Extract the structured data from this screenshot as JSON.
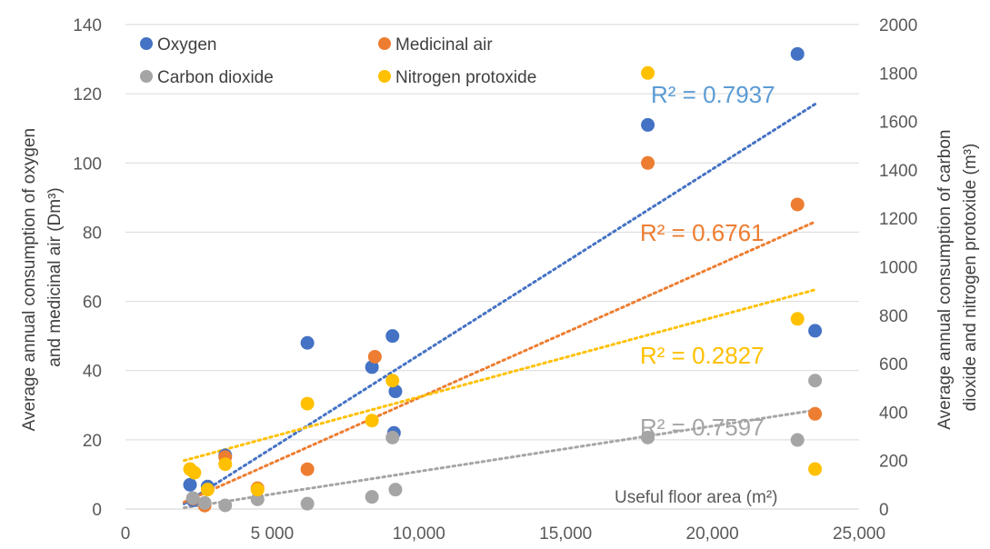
{
  "chart_data": {
    "type": "scatter",
    "title": "",
    "xlabel": "Useful floor area (m²)",
    "ylabel_left": [
      "Average annual consumption of oxygen",
      "and medicinal air (Dm³)"
    ],
    "ylabel_right": [
      "Average annual consumption of carbon",
      "dioxide and nitrogen protoxide (m³)"
    ],
    "xlim": [
      0,
      25000
    ],
    "ylim_left": [
      0,
      140
    ],
    "ylim_right": [
      0,
      2000
    ],
    "x_ticks": [
      "0",
      "5 000",
      "10,000",
      "15,000",
      "20,000",
      "25,000"
    ],
    "y_left_ticks": [
      "0",
      "20",
      "40",
      "60",
      "80",
      "100",
      "120",
      "140"
    ],
    "y_right_ticks": [
      "0",
      "200",
      "400",
      "600",
      "800",
      "1000",
      "1200",
      "1400",
      "1600",
      "1800",
      "2000"
    ],
    "grid": true,
    "legend_position": "top-left",
    "series": [
      {
        "name": "Oxygen",
        "axis": "left",
        "color": "#4472C4",
        "r2_label": "R² = 0.7937",
        "r2_color": "#5B9BD5",
        "trend": [
          [
            2000,
            1.5
          ],
          [
            23500,
            117
          ]
        ],
        "points": [
          [
            2200,
            7
          ],
          [
            2300,
            2.5
          ],
          [
            2800,
            6.5
          ],
          [
            3400,
            15.5
          ],
          [
            6200,
            48
          ],
          [
            8400,
            41
          ],
          [
            9100,
            50
          ],
          [
            9150,
            22
          ],
          [
            9200,
            34
          ],
          [
            17800,
            111
          ],
          [
            22900,
            131.5
          ],
          [
            23500,
            51.5
          ]
        ]
      },
      {
        "name": "Medicinal air",
        "axis": "left",
        "color": "#ED7D31",
        "r2_label": "R² = 0.6761",
        "r2_color": "#ED7D31",
        "trend": [
          [
            2000,
            2
          ],
          [
            23500,
            83
          ]
        ],
        "points": [
          [
            2300,
            3
          ],
          [
            2700,
            1
          ],
          [
            3400,
            15
          ],
          [
            4500,
            6
          ],
          [
            6200,
            11.5
          ],
          [
            8500,
            44
          ],
          [
            17800,
            100
          ],
          [
            22900,
            88
          ],
          [
            23500,
            27.5
          ]
        ]
      },
      {
        "name": "Carbon dioxide",
        "axis": "right",
        "color": "#A5A5A5",
        "r2_label": "R² = 0.7597",
        "r2_color": "#A5A5A5",
        "trend": [
          [
            2000,
            5
          ],
          [
            23500,
            408
          ]
        ],
        "points": [
          [
            2300,
            45
          ],
          [
            2700,
            25
          ],
          [
            3400,
            15
          ],
          [
            4500,
            40
          ],
          [
            6200,
            22
          ],
          [
            8400,
            50
          ],
          [
            9100,
            295
          ],
          [
            9200,
            80
          ],
          [
            17800,
            295
          ],
          [
            22900,
            285
          ],
          [
            23500,
            530
          ]
        ]
      },
      {
        "name": "Nitrogen protoxide",
        "axis": "right",
        "color": "#FFC000",
        "r2_label": "R² = 0.2827",
        "r2_color": "#FFC000",
        "trend": [
          [
            2000,
            200
          ],
          [
            23500,
            905
          ]
        ],
        "points": [
          [
            2200,
            165
          ],
          [
            2350,
            150
          ],
          [
            2800,
            80
          ],
          [
            3400,
            185
          ],
          [
            4500,
            80
          ],
          [
            6200,
            435
          ],
          [
            8400,
            365
          ],
          [
            9100,
            530
          ],
          [
            17800,
            1800
          ],
          [
            22900,
            785
          ],
          [
            23500,
            165
          ]
        ]
      }
    ]
  }
}
